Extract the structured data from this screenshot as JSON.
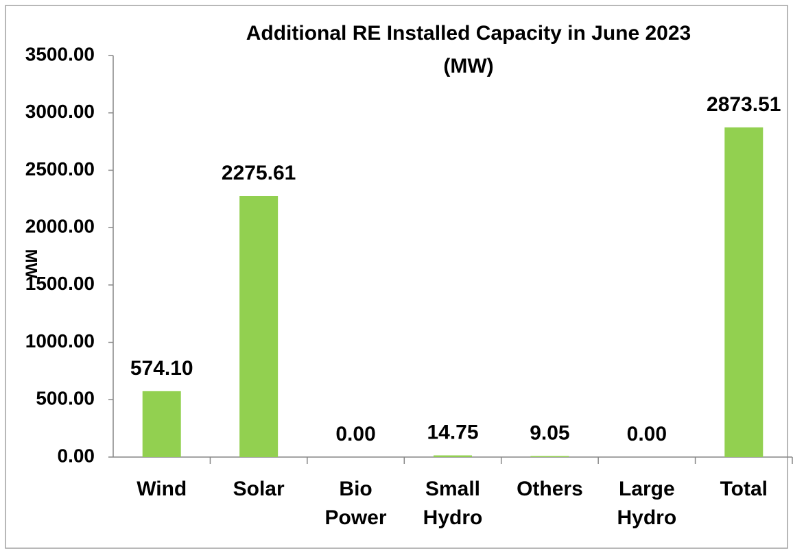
{
  "chart_data": {
    "type": "bar",
    "title": [
      "Additional RE Installed Capacity in June 2023",
      "(MW)"
    ],
    "y_label": "MW",
    "categories": [
      "Wind",
      "Solar",
      "Bio Power",
      "Small Hydro",
      "Others",
      "Large Hydro",
      "Total"
    ],
    "values": [
      574.1,
      2275.61,
      0,
      14.75,
      9.05,
      0,
      2873.51
    ],
    "value_labels": [
      "574.10",
      "2275.61",
      "0.00",
      "14.75",
      "9.05",
      "0.00",
      "2873.51"
    ],
    "color": "#92d050",
    "ylim": [
      0,
      3500
    ],
    "yticks": [
      {
        "value": 0,
        "label": "0.00"
      },
      {
        "value": 500,
        "label": "500.00"
      },
      {
        "value": 1000,
        "label": "1000.00"
      },
      {
        "value": 1500,
        "label": "1500.00"
      },
      {
        "value": 2000,
        "label": "2000.00"
      },
      {
        "value": 2500,
        "label": "2500.00"
      },
      {
        "value": 3000,
        "label": "3000.00"
      },
      {
        "value": 3500,
        "label": "3500.00"
      }
    ],
    "grid": false
  }
}
